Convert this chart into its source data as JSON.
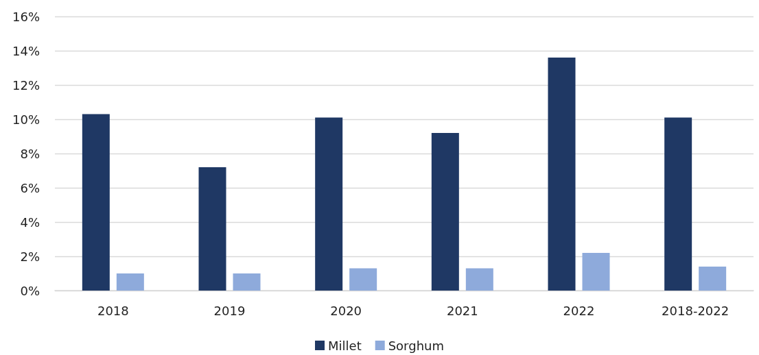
{
  "chart_data": {
    "type": "bar",
    "categories": [
      "2018",
      "2019",
      "2020",
      "2021",
      "2022",
      "2018-2022"
    ],
    "series": [
      {
        "name": "Millet",
        "color": "#1f3864",
        "values": [
          10.3,
          7.2,
          10.1,
          9.2,
          13.6,
          10.1
        ]
      },
      {
        "name": "Sorghum",
        "color": "#8eaadb",
        "values": [
          1.0,
          1.0,
          1.3,
          1.3,
          2.2,
          1.4
        ]
      }
    ],
    "ylim": [
      0,
      16
    ],
    "yticks": [
      {
        "value": 0,
        "label": "0%"
      },
      {
        "value": 2,
        "label": "2%"
      },
      {
        "value": 4,
        "label": "4%"
      },
      {
        "value": 6,
        "label": "6%"
      },
      {
        "value": 8,
        "label": "8%"
      },
      {
        "value": 10,
        "label": "10%"
      },
      {
        "value": 12,
        "label": "12%"
      },
      {
        "value": 14,
        "label": "14%"
      },
      {
        "value": 16,
        "label": "16%"
      }
    ],
    "grid": "y",
    "legend": "bottom"
  }
}
